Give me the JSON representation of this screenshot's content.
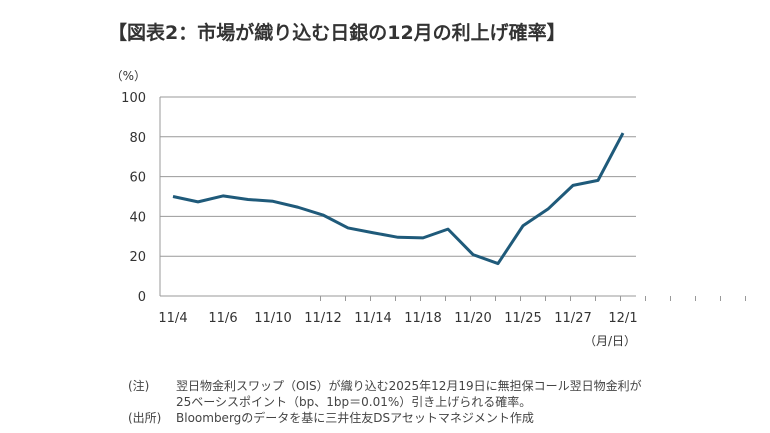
{
  "chart_data": {
    "type": "line",
    "title": "【図表2：市場が織り込む日銀の12月の利上げ確率】",
    "ylabel": "（%）",
    "xlabel": "（月/日）",
    "ylim": [
      0,
      100
    ],
    "yticks": [
      0,
      20,
      40,
      60,
      80,
      100
    ],
    "grid": true,
    "x_tick_labels": [
      "11/4",
      "11/6",
      "11/10",
      "11/12",
      "11/14",
      "11/18",
      "11/20",
      "11/25",
      "11/27",
      "12/1"
    ],
    "series": [
      {
        "name": "利上げ確率",
        "color": "#1f5a7a",
        "values": [
          50,
          47.3,
          50.3,
          48.5,
          47.6,
          44.6,
          40.7,
          34.2,
          31.8,
          29.5,
          29.2,
          33.6,
          20.8,
          16.3,
          35.3,
          43.7,
          55.6,
          58.1,
          81.9
        ]
      }
    ]
  },
  "notes": {
    "note_label": "(注)",
    "note_line1": "翌日物金利スワップ（OIS）が織り込む2025年12月19日に無担保コール翌日物金利が",
    "note_line2": "25ベーシスポイント（bp、1bp＝0.01%）引き上げられる確率。",
    "source_label": "(出所)",
    "source_text": "Bloombergのデータを基に三井住友DSアセットマネジメント作成"
  }
}
